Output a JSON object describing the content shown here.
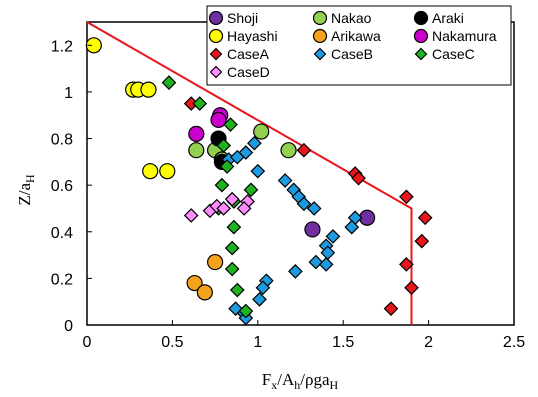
{
  "chart_data": {
    "type": "scatter",
    "xlabel": "F_x/A_h/ρga_H",
    "ylabel": "Z/a_H",
    "xlim": [
      0,
      2.5
    ],
    "ylim": [
      0,
      1.3
    ],
    "x_ticks": [
      0,
      0.5,
      1,
      1.5,
      2,
      2.5
    ],
    "y_ticks": [
      0,
      0.2,
      0.4,
      0.6,
      0.8,
      1,
      1.2
    ],
    "x_tick_labels": [
      "0",
      "0.5",
      "1",
      "1.5",
      "2",
      "2.5"
    ],
    "y_tick_labels": [
      "0",
      "0.2",
      "0.4",
      "0.6",
      "0.8",
      "1",
      "1.2"
    ],
    "grid": false,
    "legend_position": "top-right",
    "envelope_line": {
      "color": "#e8161b",
      "points": [
        [
          0,
          1.3
        ],
        [
          1.9,
          0.5
        ],
        [
          1.9,
          0
        ]
      ]
    },
    "series": [
      {
        "name": "Shoji",
        "marker": "circle",
        "color": "#7030a0",
        "points": [
          [
            1.32,
            0.41
          ],
          [
            1.64,
            0.46
          ]
        ]
      },
      {
        "name": "Nakao",
        "marker": "circle",
        "color": "#92d050",
        "points": [
          [
            1.02,
            0.83
          ],
          [
            1.18,
            0.75
          ],
          [
            0.64,
            0.75
          ],
          [
            0.75,
            0.75
          ],
          [
            0.79,
            0.71
          ]
        ]
      },
      {
        "name": "Araki",
        "marker": "circle",
        "color": "#000000",
        "points": [
          [
            0.77,
            0.8
          ],
          [
            0.79,
            0.7
          ]
        ]
      },
      {
        "name": "Hayashi",
        "marker": "circle",
        "color": "#ffff00",
        "points": [
          [
            0.04,
            1.2
          ],
          [
            0.27,
            1.01
          ],
          [
            0.3,
            1.01
          ],
          [
            0.36,
            1.01
          ],
          [
            0.37,
            0.66
          ],
          [
            0.47,
            0.66
          ]
        ]
      },
      {
        "name": "Arikawa",
        "marker": "circle",
        "color": "#f4a21c",
        "points": [
          [
            0.63,
            0.18
          ],
          [
            0.69,
            0.14
          ],
          [
            0.75,
            0.27
          ]
        ]
      },
      {
        "name": "Nakamura",
        "marker": "circle",
        "color": "#cc00cc",
        "points": [
          [
            0.78,
            0.9
          ],
          [
            0.77,
            0.88
          ],
          [
            0.64,
            0.82
          ]
        ]
      },
      {
        "name": "CaseA",
        "marker": "diamond",
        "color": "#e8161b",
        "points": [
          [
            0.61,
            0.95
          ],
          [
            1.27,
            0.75
          ],
          [
            1.57,
            0.65
          ],
          [
            1.59,
            0.63
          ],
          [
            1.87,
            0.55
          ],
          [
            1.98,
            0.46
          ],
          [
            1.96,
            0.36
          ],
          [
            1.87,
            0.26
          ],
          [
            1.9,
            0.16
          ],
          [
            1.78,
            0.07
          ]
        ]
      },
      {
        "name": "CaseB",
        "marker": "diamond",
        "color": "#1e9be0",
        "points": [
          [
            0.83,
            0.71
          ],
          [
            0.88,
            0.72
          ],
          [
            0.93,
            0.74
          ],
          [
            0.98,
            0.78
          ],
          [
            1.0,
            0.66
          ],
          [
            1.16,
            0.62
          ],
          [
            1.21,
            0.58
          ],
          [
            1.24,
            0.55
          ],
          [
            1.27,
            0.52
          ],
          [
            1.33,
            0.5
          ],
          [
            1.57,
            0.46
          ],
          [
            1.55,
            0.42
          ],
          [
            1.44,
            0.38
          ],
          [
            1.4,
            0.34
          ],
          [
            1.41,
            0.31
          ],
          [
            1.34,
            0.27
          ],
          [
            1.4,
            0.26
          ],
          [
            1.22,
            0.23
          ],
          [
            1.05,
            0.19
          ],
          [
            1.03,
            0.16
          ],
          [
            1.01,
            0.11
          ],
          [
            0.87,
            0.07
          ],
          [
            0.92,
            0.05
          ],
          [
            0.93,
            0.03
          ]
        ]
      },
      {
        "name": "CaseC",
        "marker": "diamond",
        "color": "#1eb31e",
        "points": [
          [
            0.48,
            1.04
          ],
          [
            0.66,
            0.95
          ],
          [
            0.84,
            0.86
          ],
          [
            0.8,
            0.77
          ],
          [
            0.82,
            0.68
          ],
          [
            0.79,
            0.6
          ],
          [
            0.96,
            0.58
          ],
          [
            0.86,
            0.53
          ],
          [
            0.77,
            0.5
          ],
          [
            0.86,
            0.42
          ],
          [
            0.85,
            0.33
          ],
          [
            0.85,
            0.24
          ],
          [
            0.88,
            0.15
          ],
          [
            0.93,
            0.06
          ]
        ]
      },
      {
        "name": "CaseD",
        "marker": "diamond",
        "color": "#ff8cff",
        "points": [
          [
            0.61,
            0.47
          ],
          [
            0.72,
            0.49
          ],
          [
            0.76,
            0.51
          ],
          [
            0.8,
            0.5
          ],
          [
            0.85,
            0.54
          ],
          [
            0.94,
            0.53
          ],
          [
            0.92,
            0.5
          ]
        ]
      }
    ]
  }
}
